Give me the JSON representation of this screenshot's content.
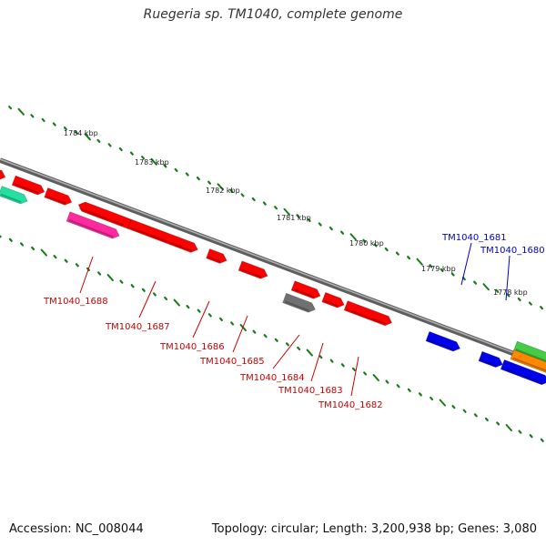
{
  "title": "Ruegeria sp. TM1040, complete genome",
  "footer": {
    "accession": "Accession: NC_008044",
    "summary": "Topology: circular; Length: 3,200,938 bp; Genes: 3,080"
  },
  "colors": {
    "backbone": "#808080",
    "ticks": "#1a7a1a",
    "gene_red": "#ff0000",
    "gene_blue": "#0000ee",
    "gene_pink": "#ff2a9f",
    "gene_gray": "#707070",
    "gene_teal": "#22e0a0",
    "gene_green": "#44cc44",
    "gene_orange": "#ff8800",
    "label_red": "#cc0000",
    "label_blue": "#0000cc"
  },
  "kbp_markers": [
    "1784 kbp",
    "1783 kbp",
    "1782 kbp",
    "1781 kbp",
    "1780 kbp",
    "1779 kbp",
    "1778 kbp"
  ],
  "gene_labels": [
    {
      "name": "TM1040_1688",
      "color": "red"
    },
    {
      "name": "TM1040_1687",
      "color": "red"
    },
    {
      "name": "TM1040_1686",
      "color": "red"
    },
    {
      "name": "TM1040_1685",
      "color": "red"
    },
    {
      "name": "TM1040_1684",
      "color": "red"
    },
    {
      "name": "TM1040_1683",
      "color": "red"
    },
    {
      "name": "TM1040_1682",
      "color": "red"
    },
    {
      "name": "TM1040_1681",
      "color": "blue"
    },
    {
      "name": "TM1040_1680",
      "color": "blue"
    }
  ]
}
